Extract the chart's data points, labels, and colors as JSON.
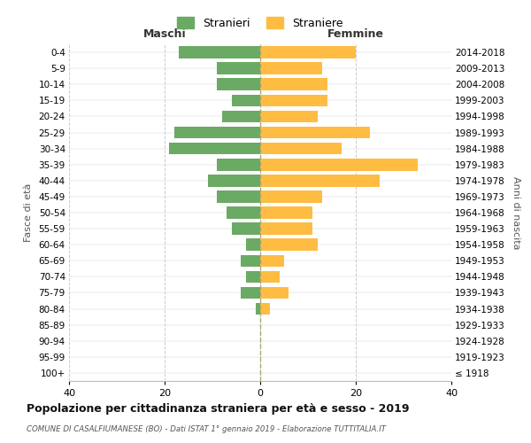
{
  "age_groups": [
    "100+",
    "95-99",
    "90-94",
    "85-89",
    "80-84",
    "75-79",
    "70-74",
    "65-69",
    "60-64",
    "55-59",
    "50-54",
    "45-49",
    "40-44",
    "35-39",
    "30-34",
    "25-29",
    "20-24",
    "15-19",
    "10-14",
    "5-9",
    "0-4"
  ],
  "birth_years": [
    "≤ 1918",
    "1919-1923",
    "1924-1928",
    "1929-1933",
    "1934-1938",
    "1939-1943",
    "1944-1948",
    "1949-1953",
    "1954-1958",
    "1959-1963",
    "1964-1968",
    "1969-1973",
    "1974-1978",
    "1979-1983",
    "1984-1988",
    "1989-1993",
    "1994-1998",
    "1999-2003",
    "2004-2008",
    "2009-2013",
    "2014-2018"
  ],
  "maschi": [
    0,
    0,
    0,
    0,
    1,
    4,
    3,
    4,
    3,
    6,
    7,
    9,
    11,
    9,
    19,
    18,
    8,
    6,
    9,
    9,
    17
  ],
  "femmine": [
    0,
    0,
    0,
    0,
    2,
    6,
    4,
    5,
    12,
    11,
    11,
    13,
    25,
    33,
    17,
    23,
    12,
    14,
    14,
    13,
    20
  ],
  "color_maschi": "#6aaa64",
  "color_femmine": "#ffbc42",
  "title": "Popolazione per cittadinanza straniera per età e sesso - 2019",
  "subtitle": "COMUNE DI CASALFIUMANESE (BO) - Dati ISTAT 1° gennaio 2019 - Elaborazione TUTTITALIA.IT",
  "ylabel_left": "Fasce di età",
  "ylabel_right": "Anni di nascita",
  "xlabel_left": "Maschi",
  "xlabel_right": "Femmine",
  "legend_maschi": "Stranieri",
  "legend_femmine": "Straniere",
  "xlim": 40,
  "background_color": "#ffffff",
  "grid_color": "#cccccc"
}
